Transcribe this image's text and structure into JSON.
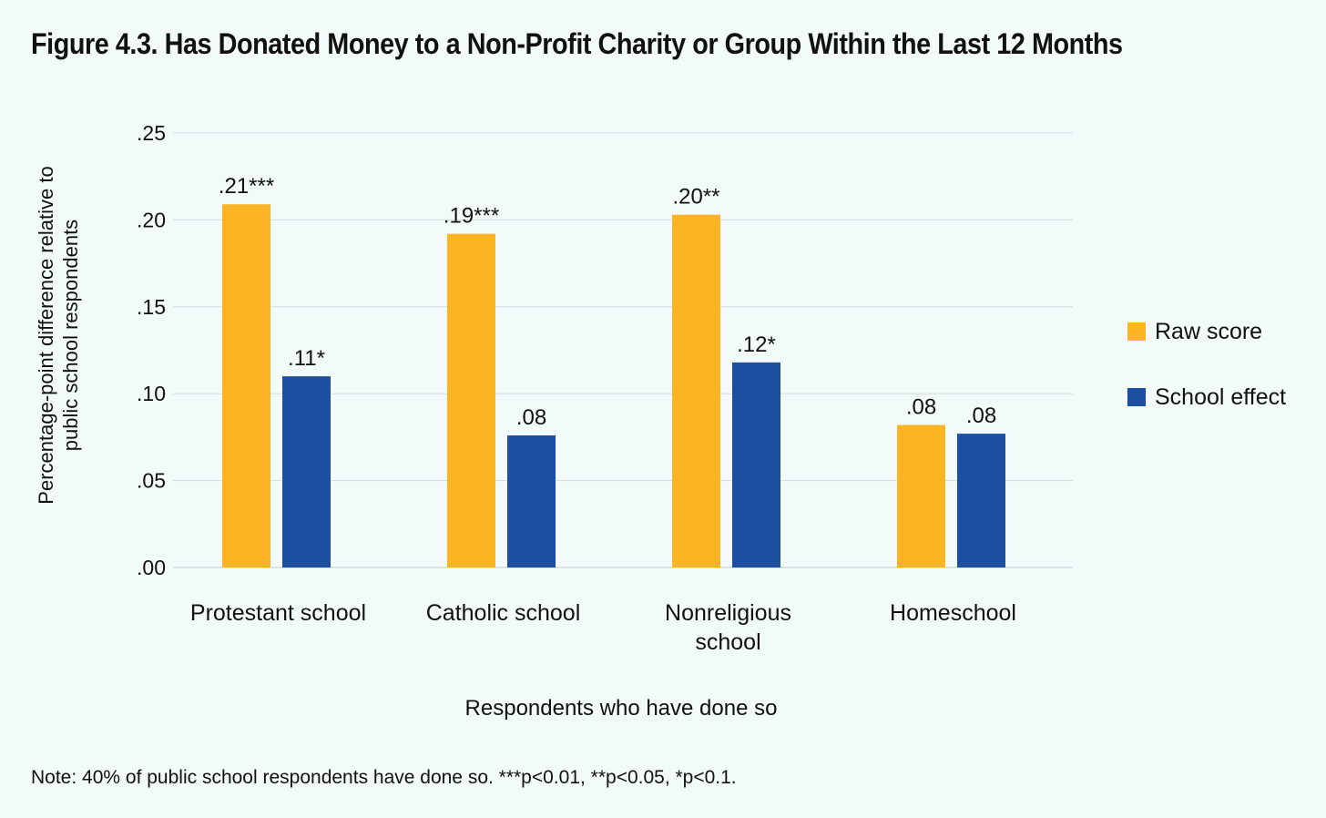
{
  "chart_data": {
    "type": "bar",
    "title": "Figure 4.3. Has Donated Money to a Non-Profit Charity or Group Within the Last 12 Months",
    "xlabel": "Respondents who have done so",
    "ylabel": "Percentage-point difference relative to public school respondents",
    "ylim": [
      0,
      0.25
    ],
    "yticks": [
      0,
      0.05,
      0.1,
      0.15,
      0.2,
      0.25
    ],
    "ytick_labels": [
      ".00",
      ".05",
      ".10",
      ".15",
      ".20",
      ".25"
    ],
    "grid": true,
    "legend_position": "right",
    "categories": [
      "Protestant school",
      "Catholic school",
      "Nonreligious school",
      "Homeschool"
    ],
    "category_lines": [
      [
        "Protestant school"
      ],
      [
        "Catholic school"
      ],
      [
        "Nonreligious",
        "school"
      ],
      [
        "Homeschool"
      ]
    ],
    "series": [
      {
        "name": "Raw score",
        "color": "#fbb424",
        "values": [
          0.209,
          0.192,
          0.203,
          0.082
        ],
        "labels": [
          ".21***",
          ".19***",
          ".20**",
          ".08"
        ]
      },
      {
        "name": "School effect",
        "color": "#1c4fa0",
        "values": [
          0.11,
          0.076,
          0.118,
          0.077
        ],
        "labels": [
          ".11*",
          ".08",
          ".12*",
          ".08"
        ]
      }
    ],
    "note": "Note: 40% of public school respondents have done so. ***p<0.01, **p<0.05, *p<0.1."
  }
}
